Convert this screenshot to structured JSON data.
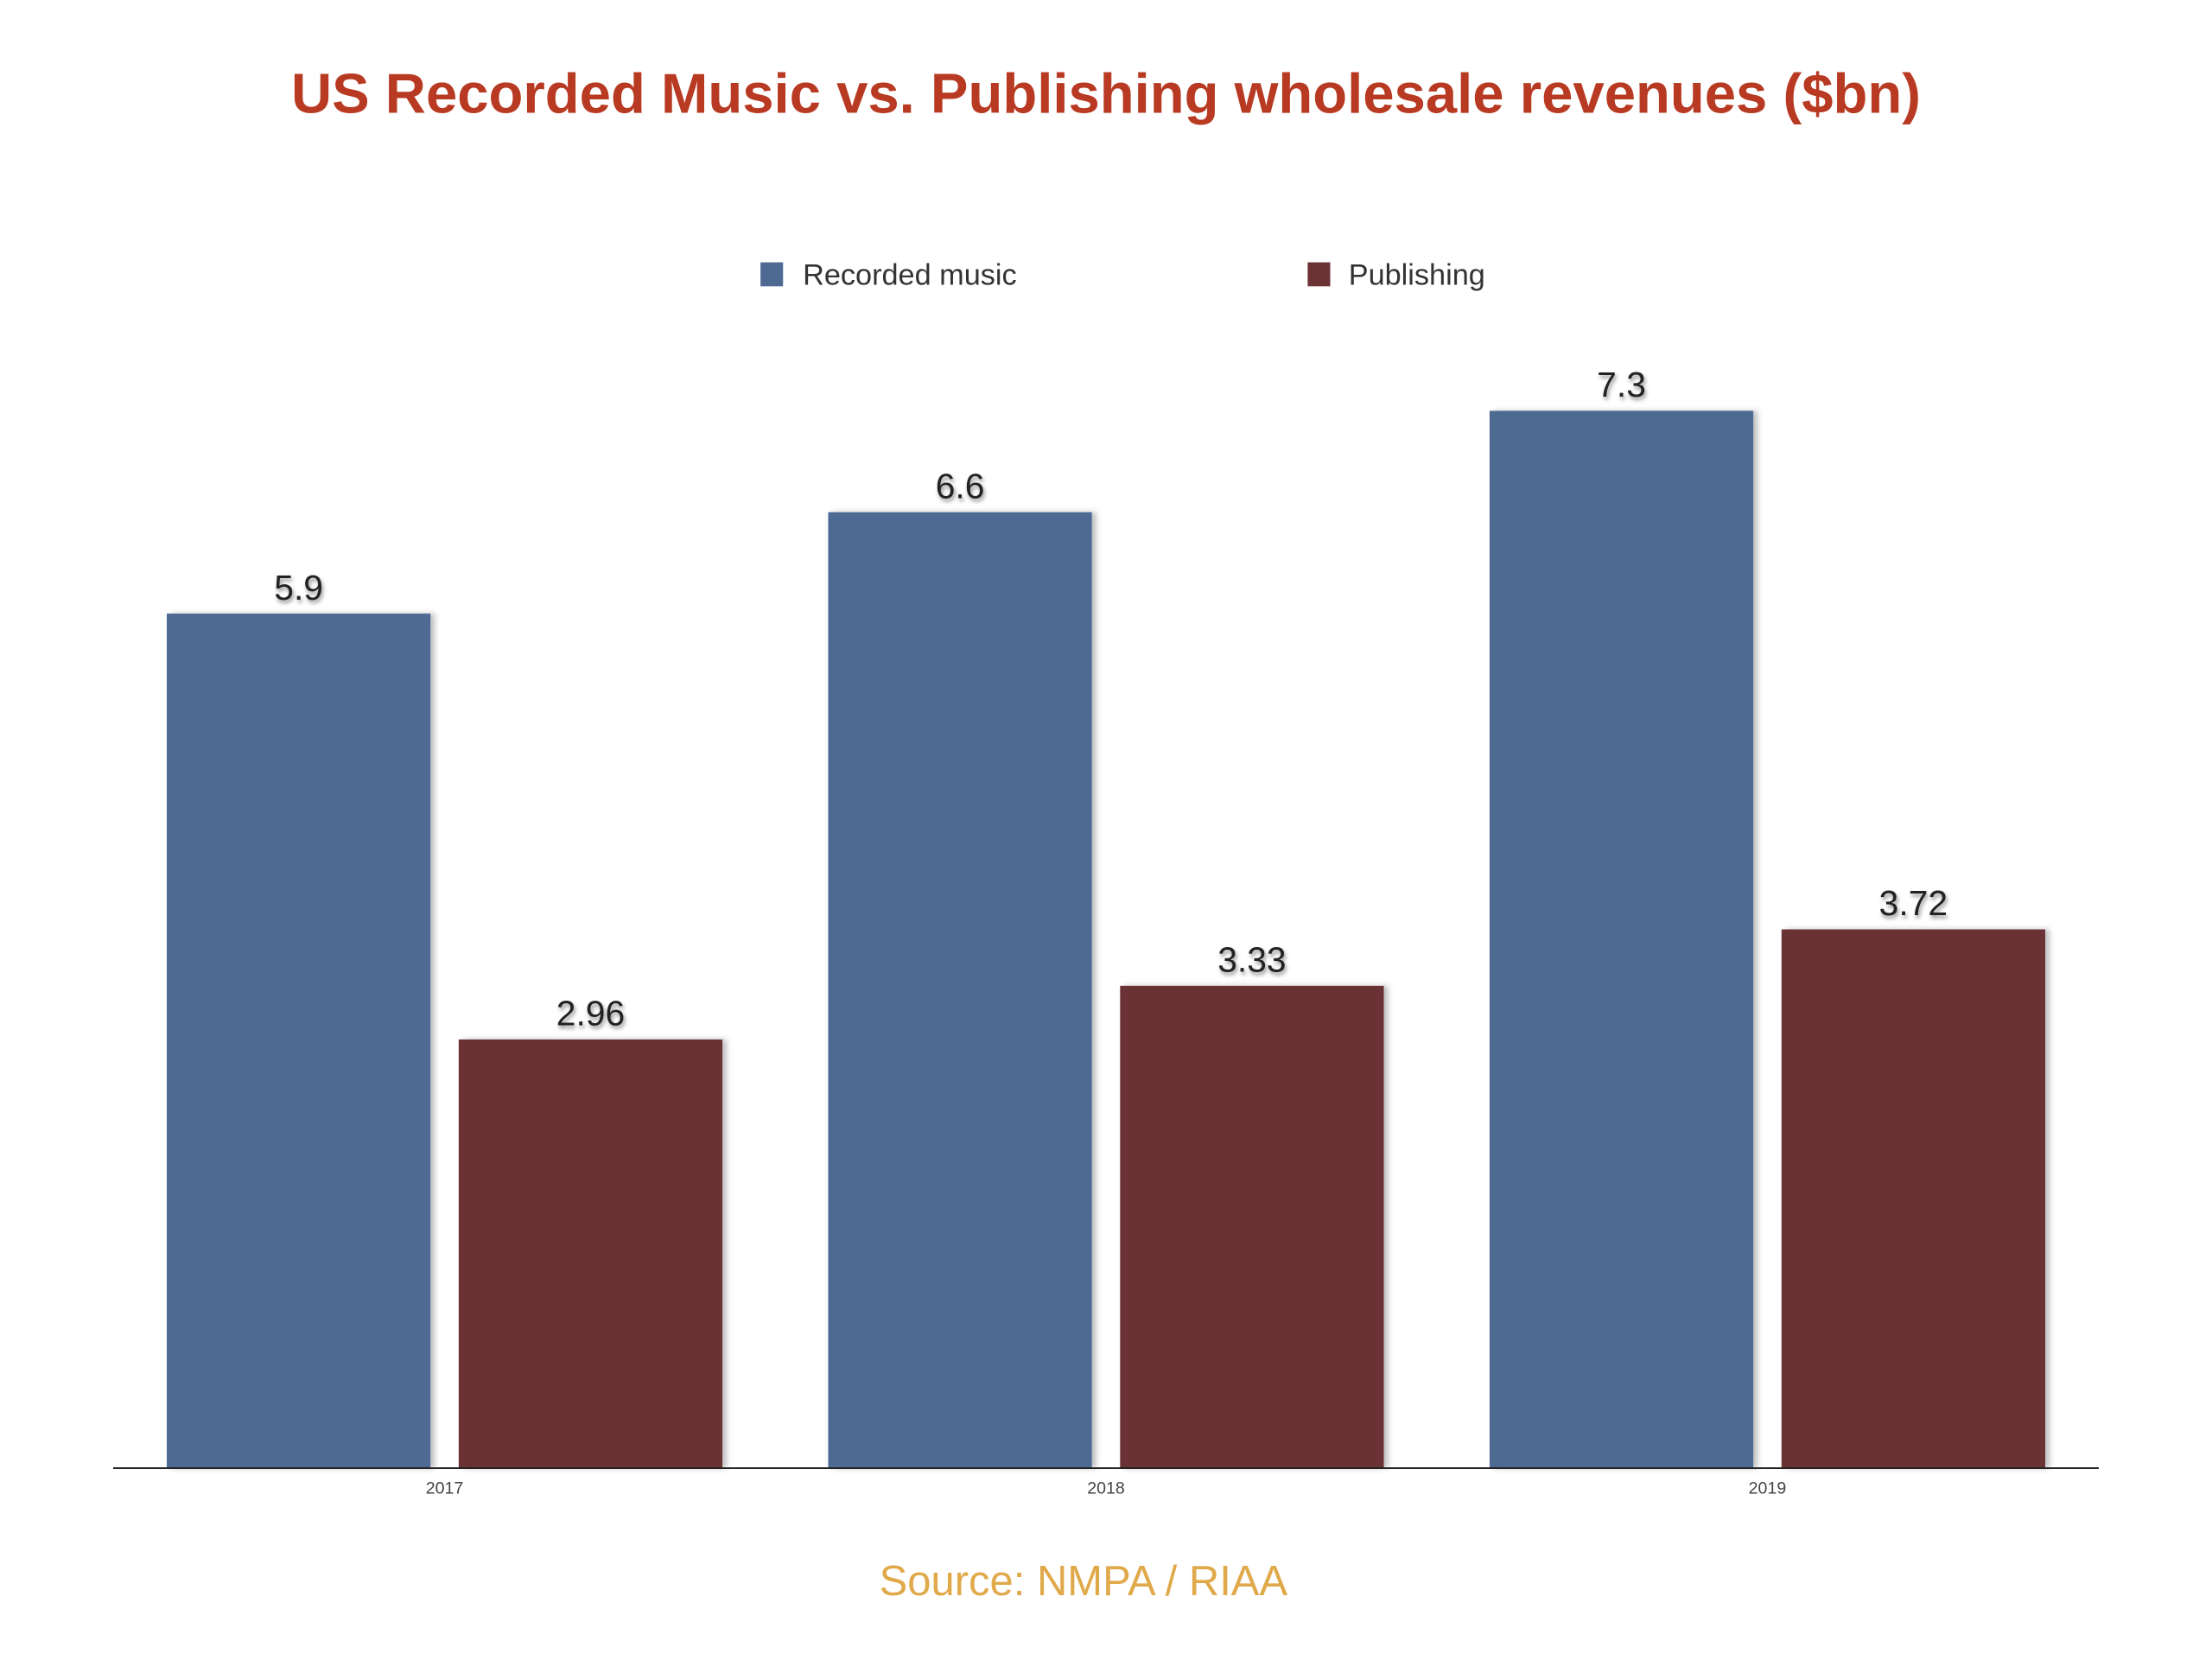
{
  "chart_data": {
    "type": "bar",
    "title": "US Recorded Music vs. Publishing wholesale revenues ($bn)",
    "categories": [
      "2017",
      "2018",
      "2019"
    ],
    "series": [
      {
        "name": "Recorded music",
        "values": [
          5.9,
          6.6,
          7.3
        ],
        "labels": [
          "5.9",
          "6.6",
          "7.3"
        ],
        "color": "#4e6a93"
      },
      {
        "name": "Publishing",
        "values": [
          2.96,
          3.33,
          3.72
        ],
        "labels": [
          "2.96",
          "3.33",
          "3.72"
        ],
        "color": "#6b3336"
      }
    ],
    "ylim": [
      0,
      7.3
    ],
    "grid": false,
    "legend_position": "top-center",
    "source": "Source: NMPA / RIAA",
    "title_color": "#b83a22",
    "source_color": "#e0a94a"
  }
}
